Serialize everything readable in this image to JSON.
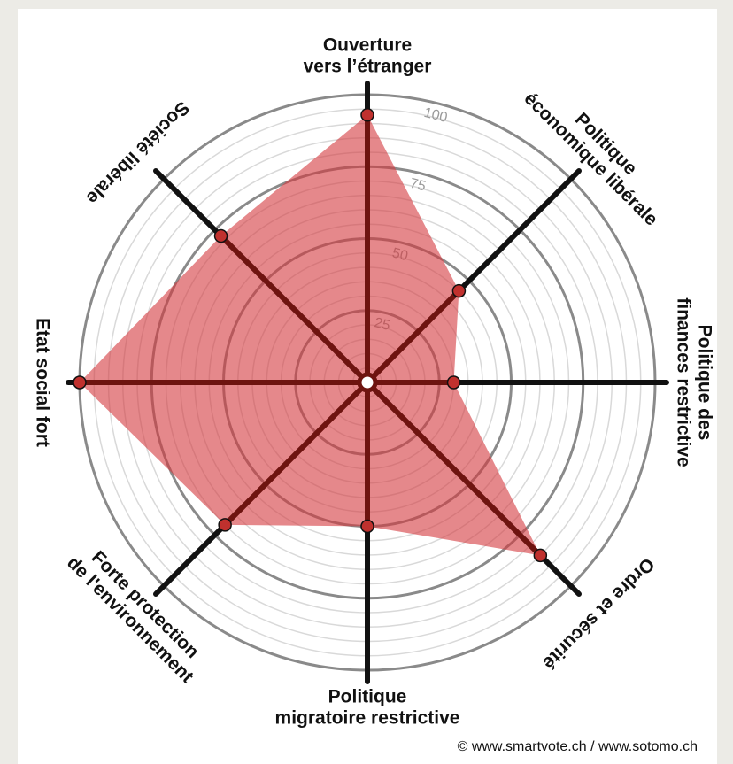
{
  "chart_data": {
    "type": "radar",
    "title": "",
    "axes": [
      {
        "label_lines": [
          "Ouverture",
          "vers l’étranger"
        ]
      },
      {
        "label_lines": [
          "Politique",
          "économique libérale"
        ]
      },
      {
        "label_lines": [
          "Politique des",
          "finances restrictive"
        ]
      },
      {
        "label_lines": [
          "Ordre et sécurité"
        ]
      },
      {
        "label_lines": [
          "Politique",
          "migratoire restrictive"
        ]
      },
      {
        "label_lines": [
          "Forte protection",
          "de l'environnement"
        ]
      },
      {
        "label_lines": [
          "Etat social fort"
        ]
      },
      {
        "label_lines": [
          "Société libérale"
        ]
      }
    ],
    "series": [
      {
        "values": [
          93,
          45,
          30,
          85,
          50,
          70,
          100,
          72
        ]
      }
    ],
    "range": [
      0,
      100
    ],
    "ticks": [
      25,
      50,
      75,
      100
    ],
    "grid": true,
    "colors": {
      "fill": "#d4393e",
      "marker": "#c0312e",
      "axis": "#111111",
      "major_ring": "#8a8a8a",
      "minor_ring": "#d9d9d9",
      "inner_spoke": "#6e1410"
    }
  },
  "footer": {
    "copyright": "© www.smartvote.ch / www.sotomo.ch"
  }
}
